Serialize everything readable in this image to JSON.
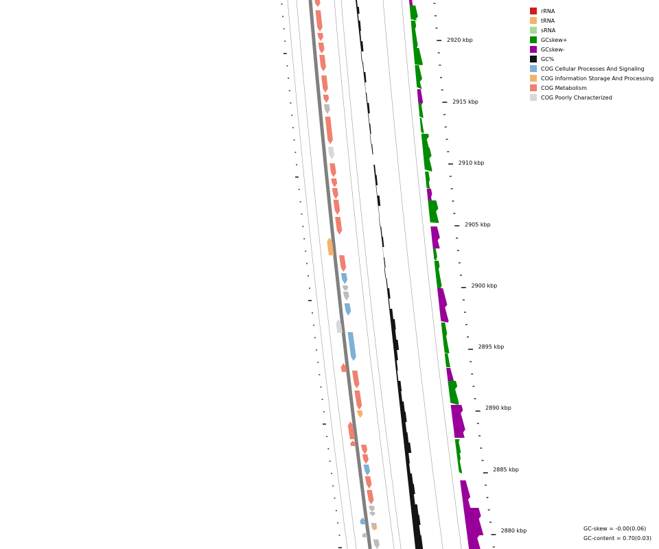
{
  "legend": {
    "items": [
      {
        "label": "rRNA",
        "color": "#cc1f1f"
      },
      {
        "label": "tRNA",
        "color": "#f6b26b"
      },
      {
        "label": "sRNA",
        "color": "#a6d99a"
      },
      {
        "label": "GCskew+",
        "color": "#008c00"
      },
      {
        "label": "GCskew-",
        "color": "#990099"
      },
      {
        "label": "GC%",
        "color": "#141414"
      },
      {
        "label": "COG Cellular Processes And Signaling",
        "color": "#7fb0d6"
      },
      {
        "label": "COG Information Storage And Processing",
        "color": "#f6b26b"
      },
      {
        "label": "COG Metabolism",
        "color": "#f08070"
      },
      {
        "label": "COG Poorly Characterized",
        "color": "#d8d8d8"
      }
    ]
  },
  "ruler": {
    "labels": [
      "2920 kbp",
      "2915 kbp",
      "2910 kbp",
      "2905 kbp",
      "2900 kbp",
      "2895 kbp",
      "2890 kbp",
      "2885 kbp",
      "2880 kbp"
    ]
  },
  "stats": {
    "gc_skew": "GC-skew = -0.00(0.06)",
    "gc_content": "GC-content = 0.70(0.03)"
  },
  "colors": {
    "gc_content": "#141414",
    "skew_pos": "#008c00",
    "skew_neg": "#990099",
    "track_line": "#9a9a9a",
    "backbone": "#808080",
    "inner_ticks": "#000000"
  }
}
